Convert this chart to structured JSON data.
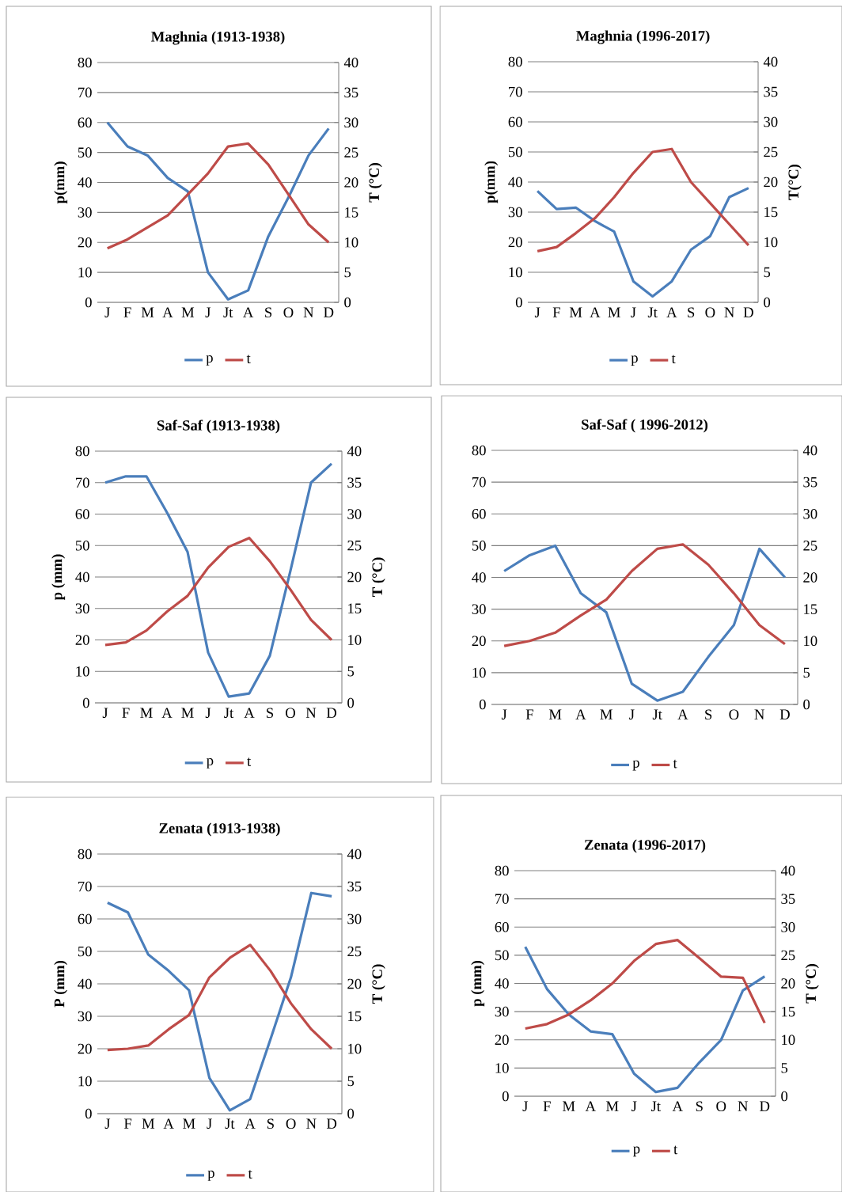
{
  "chart_data": [
    {
      "type": "line",
      "title": "Maghnia (1913-1938)",
      "ylabel": "p(mm)",
      "y2label": "T (°C)",
      "categories": [
        "J",
        "F",
        "M",
        "A",
        "M",
        "J",
        "Jt",
        "A",
        "S",
        "O",
        "N",
        "D"
      ],
      "ylim": [
        0,
        80
      ],
      "yticks": [
        0,
        10,
        20,
        30,
        40,
        50,
        60,
        70,
        80
      ],
      "y2lim": [
        0,
        40
      ],
      "y2ticks": [
        0,
        5,
        10,
        15,
        20,
        25,
        30,
        35,
        40
      ],
      "grid": "y",
      "legend": "bottom",
      "series": [
        {
          "name": "p",
          "color": "#4a7ebb",
          "values": [
            60,
            52,
            49,
            41.5,
            37,
            10,
            1,
            4,
            22,
            35,
            49,
            58
          ]
        },
        {
          "name": "t",
          "color": "#be4b48",
          "axis": "y2",
          "values": [
            9,
            10.5,
            12.5,
            14.5,
            18,
            21.5,
            26,
            26.5,
            23,
            18,
            13,
            10
          ]
        }
      ]
    },
    {
      "type": "line",
      "title": "Maghnia (1996-2017)",
      "ylabel": "p(mm)",
      "y2label": "T(°C)",
      "categories": [
        "J",
        "F",
        "M",
        "A",
        "M",
        "J",
        "Jt",
        "A",
        "S",
        "O",
        "N",
        "D"
      ],
      "ylim": [
        0,
        80
      ],
      "yticks": [
        0,
        10,
        20,
        30,
        40,
        50,
        60,
        70,
        80
      ],
      "y2lim": [
        0,
        40
      ],
      "y2ticks": [
        0,
        5,
        10,
        15,
        20,
        25,
        30,
        35,
        40
      ],
      "grid": "y",
      "legend": "bottom",
      "series": [
        {
          "name": "p",
          "color": "#4a7ebb",
          "values": [
            37,
            31,
            31.5,
            27,
            23.5,
            7,
            2,
            7,
            17.5,
            22,
            35,
            38
          ]
        },
        {
          "name": "t",
          "color": "#be4b48",
          "axis": "y2",
          "values": [
            8.5,
            9.2,
            11.5,
            14,
            17.5,
            21.5,
            25,
            25.5,
            20,
            16.5,
            13,
            9.5
          ]
        }
      ]
    },
    {
      "type": "line",
      "title": "Saf-Saf (1913-1938)",
      "ylabel": "p (mm)",
      "y2label": "T (°C)",
      "categories": [
        "J",
        "F",
        "M",
        "A",
        "M",
        "J",
        "Jt",
        "A",
        "S",
        "O",
        "N",
        "D"
      ],
      "ylim": [
        0,
        80
      ],
      "yticks": [
        0,
        10,
        20,
        30,
        40,
        50,
        60,
        70,
        80
      ],
      "y2lim": [
        0,
        40
      ],
      "y2ticks": [
        0,
        5,
        10,
        15,
        20,
        25,
        30,
        35,
        40
      ],
      "grid": "y",
      "legend": "bottom",
      "series": [
        {
          "name": "p",
          "color": "#4a7ebb",
          "values": [
            70,
            72,
            72,
            60.5,
            48,
            16,
            2,
            3,
            15,
            42,
            70,
            76
          ]
        },
        {
          "name": "t",
          "color": "#be4b48",
          "axis": "y2",
          "values": [
            9.2,
            9.6,
            11.5,
            14.5,
            17,
            21.5,
            24.8,
            26.2,
            22.5,
            18,
            13.2,
            10
          ]
        }
      ]
    },
    {
      "type": "line",
      "title": "Saf-Saf ( 1996-2012)",
      "categories": [
        "J",
        "F",
        "M",
        "A",
        "M",
        "J",
        "Jt",
        "A",
        "S",
        "O",
        "N",
        "D"
      ],
      "ylim": [
        0,
        80
      ],
      "yticks": [
        0,
        10,
        20,
        30,
        40,
        50,
        60,
        70,
        80
      ],
      "y2lim": [
        0,
        40
      ],
      "y2ticks": [
        0,
        5,
        10,
        15,
        20,
        25,
        30,
        35,
        40
      ],
      "grid": "y",
      "legend": "bottom",
      "series": [
        {
          "name": "p",
          "color": "#4a7ebb",
          "values": [
            42,
            47,
            50,
            35,
            29,
            6.5,
            1.2,
            4,
            15,
            25,
            49,
            40
          ]
        },
        {
          "name": "t",
          "color": "#be4b48",
          "axis": "y2",
          "values": [
            9.2,
            10,
            11.3,
            14,
            16.5,
            21,
            24.5,
            25.2,
            22,
            17.5,
            12.5,
            9.5
          ]
        }
      ]
    },
    {
      "type": "line",
      "title": "Zenata (1913-1938)",
      "ylabel": "P (mm)",
      "y2label": "T (°C)",
      "categories": [
        "J",
        "F",
        "M",
        "A",
        "M",
        "J",
        "Jt",
        "A",
        "S",
        "O",
        "N",
        "D"
      ],
      "ylim": [
        0,
        80
      ],
      "yticks": [
        0,
        10,
        20,
        30,
        40,
        50,
        60,
        70,
        80
      ],
      "y2lim": [
        0,
        40
      ],
      "y2ticks": [
        0,
        5,
        10,
        15,
        20,
        25,
        30,
        35,
        40
      ],
      "grid": "y",
      "legend": "bottom",
      "series": [
        {
          "name": "p",
          "color": "#4a7ebb",
          "values": [
            65,
            62,
            49,
            44,
            38,
            11,
            1,
            4.5,
            23,
            42,
            68,
            67
          ]
        },
        {
          "name": "t",
          "color": "#be4b48",
          "axis": "y2",
          "values": [
            9.8,
            10,
            10.5,
            13,
            15.2,
            21,
            24,
            26,
            22,
            17,
            13,
            10
          ]
        }
      ]
    },
    {
      "type": "line",
      "title": "Zenata (1996-2017)",
      "ylabel": "p (mm)",
      "y2label": "T (°C)",
      "categories": [
        "J",
        "F",
        "M",
        "A",
        "M",
        "J",
        "Jt",
        "A",
        "S",
        "O",
        "N",
        "D"
      ],
      "ylim": [
        0,
        80
      ],
      "yticks": [
        0,
        10,
        20,
        30,
        40,
        50,
        60,
        70,
        80
      ],
      "y2lim": [
        0,
        40
      ],
      "y2ticks": [
        0,
        5,
        10,
        15,
        20,
        25,
        30,
        35,
        40
      ],
      "grid": "y",
      "legend": "bottom",
      "series": [
        {
          "name": "p",
          "color": "#4a7ebb",
          "values": [
            53,
            38,
            29,
            23,
            22,
            8,
            1.5,
            3,
            12,
            20,
            37.5,
            42.5
          ]
        },
        {
          "name": "t",
          "color": "#be4b48",
          "axis": "y2",
          "values": [
            12,
            12.8,
            14.5,
            17,
            20,
            24,
            27,
            27.7,
            24.5,
            21.2,
            21,
            13
          ]
        }
      ]
    }
  ]
}
